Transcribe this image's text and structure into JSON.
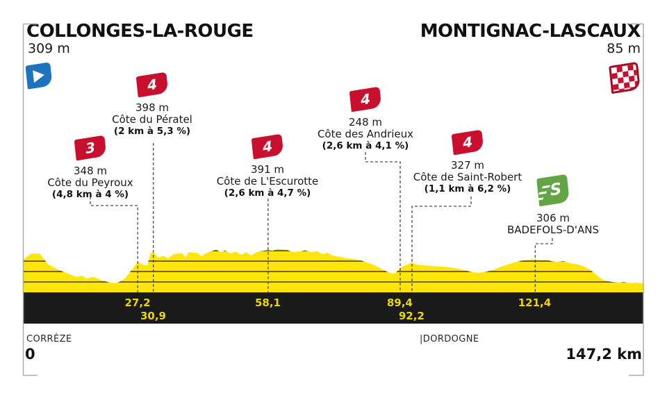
{
  "header": {
    "start_name": "COLLONGES-LA-ROUGE",
    "start_elevation": "309 m",
    "finish_name": "MONTIGNAC-LASCAUX",
    "finish_elevation": "85 m"
  },
  "footer": {
    "department_left": "CORRÈZE",
    "department_right": "|DORDOGNE",
    "start_km": "0",
    "total_km": "147,2 km"
  },
  "icons": {
    "start": "start-flag-icon",
    "finish": "finish-checkered-flag-icon",
    "climb": "category-flag-icon",
    "sprint": "sprint-flag-icon"
  },
  "colors": {
    "profile_yellow": "#FFE50A",
    "bar_black": "#1A1A1A",
    "bar_label_yellow": "#EDD500",
    "climb_red": "#C8102E",
    "sprint_green": "#61A544",
    "start_blue": "#1E73BE",
    "finish_border_red": "#A50D20",
    "text_dark": "#1a1a1a",
    "frame_gray": "#ABABAB",
    "connector_gray": "#4a4a4a"
  },
  "chart_data": {
    "type": "area",
    "title": "Stage profile COLLONGES-LA-ROUGE → MONTIGNAC-LASCAUX",
    "xlabel": "km",
    "ylabel": "m",
    "x_range": [
      0,
      147.2
    ],
    "total_distance_km": 147.2,
    "gridlines_every_m": 100,
    "start": {
      "name": "COLLONGES-LA-ROUGE",
      "elevation_m": 309
    },
    "finish": {
      "name": "MONTIGNAC-LASCAUX",
      "elevation_m": 85
    },
    "climbs": [
      {
        "km": 27.2,
        "category": "3",
        "name": "Côte du Peyroux",
        "summit_m": 348,
        "length_km": 4.8,
        "gradient_pct": 4
      },
      {
        "km": 30.9,
        "category": "4",
        "name": "Côte du Pératel",
        "summit_m": 398,
        "length_km": 2,
        "gradient_pct": 5.3
      },
      {
        "km": 58.1,
        "category": "4",
        "name": "Côte de L'Escurotte",
        "summit_m": 391,
        "length_km": 2.6,
        "gradient_pct": 4.7
      },
      {
        "km": 89.4,
        "category": "4",
        "name": "Côte des Andrieux",
        "summit_m": 248,
        "length_km": 2.6,
        "gradient_pct": 4.1
      },
      {
        "km": 92.2,
        "category": "4",
        "name": "Côte de Saint-Robert",
        "summit_m": 327,
        "length_km": 1.1,
        "gradient_pct": 6.2
      }
    ],
    "sprint": {
      "km": 121.4,
      "name": "BADEFOLS-D'ANS",
      "elevation_m": 306
    },
    "departments": [
      "CORRÈZE",
      "DORDOGNE"
    ],
    "profile": [
      [
        0,
        309
      ],
      [
        1,
        345
      ],
      [
        2,
        372
      ],
      [
        4,
        372
      ],
      [
        5,
        318
      ],
      [
        6,
        268
      ],
      [
        7.7,
        233
      ],
      [
        9.4,
        200
      ],
      [
        11,
        175
      ],
      [
        12.7,
        148
      ],
      [
        14,
        160
      ],
      [
        15.1,
        133
      ],
      [
        16.8,
        148
      ],
      [
        18.4,
        120
      ],
      [
        20,
        100
      ],
      [
        21.7,
        88
      ],
      [
        22.9,
        100
      ],
      [
        24.2,
        133
      ],
      [
        25.5,
        200
      ],
      [
        26.5,
        253
      ],
      [
        27.2,
        298
      ],
      [
        28.3,
        268
      ],
      [
        29.5,
        258
      ],
      [
        30.3,
        378
      ],
      [
        31.2,
        378
      ],
      [
        32.1,
        333
      ],
      [
        33.2,
        352
      ],
      [
        34.4,
        327
      ],
      [
        35.7,
        365
      ],
      [
        37.7,
        378
      ],
      [
        38.6,
        333
      ],
      [
        39.3,
        385
      ],
      [
        41.4,
        378
      ],
      [
        42.3,
        347
      ],
      [
        43.6,
        378
      ],
      [
        44.7,
        395
      ],
      [
        45.9,
        410
      ],
      [
        46.9,
        385
      ],
      [
        48,
        403
      ],
      [
        49.2,
        373
      ],
      [
        50.5,
        392
      ],
      [
        51.8,
        360
      ],
      [
        53,
        385
      ],
      [
        54.1,
        353
      ],
      [
        55.1,
        378
      ],
      [
        56.2,
        395
      ],
      [
        58.1,
        405
      ],
      [
        59.2,
        398
      ],
      [
        60.3,
        415
      ],
      [
        61.7,
        412
      ],
      [
        62.8,
        405
      ],
      [
        64,
        387
      ],
      [
        65.6,
        393
      ],
      [
        67,
        403
      ],
      [
        68.3,
        387
      ],
      [
        69.9,
        393
      ],
      [
        71.1,
        367
      ],
      [
        72.2,
        380
      ],
      [
        73.5,
        353
      ],
      [
        75.2,
        340
      ],
      [
        76.8,
        327
      ],
      [
        78.4,
        320
      ],
      [
        80.1,
        307
      ],
      [
        81.7,
        287
      ],
      [
        83.4,
        260
      ],
      [
        85,
        227
      ],
      [
        86.3,
        200
      ],
      [
        87.5,
        182
      ],
      [
        88.3,
        180
      ],
      [
        89.4,
        233
      ],
      [
        90.8,
        260
      ],
      [
        92.2,
        287
      ],
      [
        93.3,
        267
      ],
      [
        94.9,
        260
      ],
      [
        97,
        253
      ],
      [
        99.8,
        247
      ],
      [
        102.6,
        233
      ],
      [
        104.8,
        213
      ],
      [
        105.9,
        200
      ],
      [
        108,
        187
      ],
      [
        110.2,
        200
      ],
      [
        111.8,
        220
      ],
      [
        113.5,
        247
      ],
      [
        115.4,
        273
      ],
      [
        117.1,
        293
      ],
      [
        118.7,
        307
      ],
      [
        120.4,
        313
      ],
      [
        121.4,
        318
      ],
      [
        122.8,
        307
      ],
      [
        124.2,
        313
      ],
      [
        125.3,
        300
      ],
      [
        126.6,
        293
      ],
      [
        128.3,
        300
      ],
      [
        129.9,
        280
      ],
      [
        131.6,
        267
      ],
      [
        133.2,
        247
      ],
      [
        134.4,
        220
      ],
      [
        135.5,
        187
      ],
      [
        136.7,
        147
      ],
      [
        137.7,
        120
      ],
      [
        138.8,
        107
      ],
      [
        139.8,
        100
      ],
      [
        141.4,
        93
      ],
      [
        142.6,
        100
      ],
      [
        144.2,
        87
      ],
      [
        145.5,
        93
      ],
      [
        147.2,
        85
      ]
    ]
  }
}
